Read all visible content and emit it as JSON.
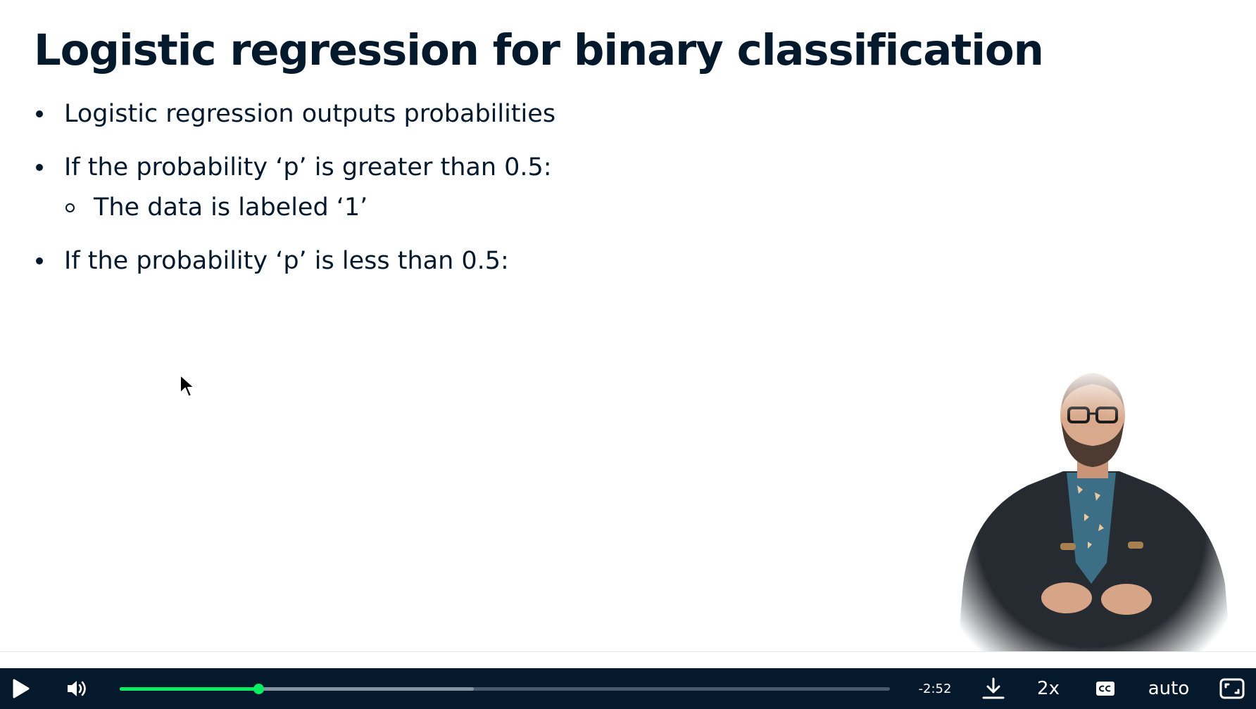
{
  "slide": {
    "title": "Logistic regression for binary classification",
    "bullets": [
      "Logistic regression outputs probabilities",
      "If the probability ‘p’ is greater than 0.5:",
      "If the probability ‘p’ is less than 0.5:"
    ],
    "sub_bullets": [
      "The data is labeled ‘1’"
    ]
  },
  "player": {
    "time_remaining": "-2:52",
    "playback_speed": "2x",
    "quality": "auto",
    "progress_played": 0.18,
    "progress_buffered": 0.46,
    "accent_color": "#03ef62",
    "bar_color": "#05192d",
    "icons": [
      "play-icon",
      "volume-icon",
      "download-icon",
      "closed-captions-icon",
      "fullscreen-icon"
    ]
  }
}
